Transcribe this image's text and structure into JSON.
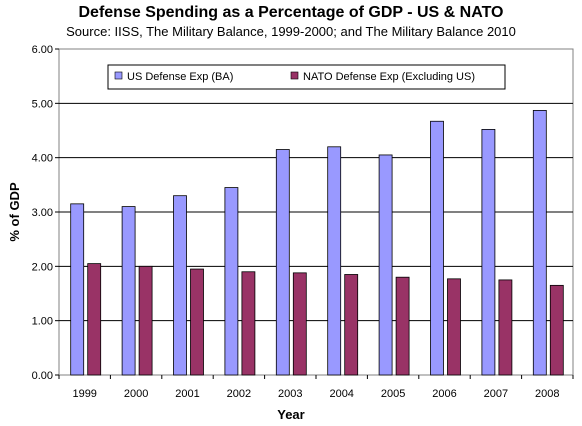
{
  "chart_data": {
    "type": "bar",
    "title": "Defense Spending as a Percentage of GDP - US & NATO",
    "subtitle": "Source: IISS, The Military Balance, 1999-2000; and The Military Balance 2010",
    "xlabel": "Year",
    "ylabel": "% of GDP",
    "ylim": [
      0,
      6
    ],
    "yticks": [
      "0.00",
      "1.00",
      "2.00",
      "3.00",
      "4.00",
      "5.00",
      "6.00"
    ],
    "grid": true,
    "legend_position": "top",
    "categories": [
      "1999",
      "2000",
      "2001",
      "2002",
      "2003",
      "2004",
      "2005",
      "2006",
      "2007",
      "2008"
    ],
    "series": [
      {
        "name": "US Defense Exp (BA)",
        "color": "#9999ff",
        "values": [
          3.15,
          3.1,
          3.3,
          3.45,
          4.15,
          4.2,
          4.05,
          4.67,
          4.52,
          4.87
        ]
      },
      {
        "name": "NATO Defense Exp (Excluding US)",
        "color": "#993366",
        "values": [
          2.05,
          2.0,
          1.95,
          1.9,
          1.88,
          1.85,
          1.8,
          1.77,
          1.75,
          1.65
        ]
      }
    ]
  }
}
